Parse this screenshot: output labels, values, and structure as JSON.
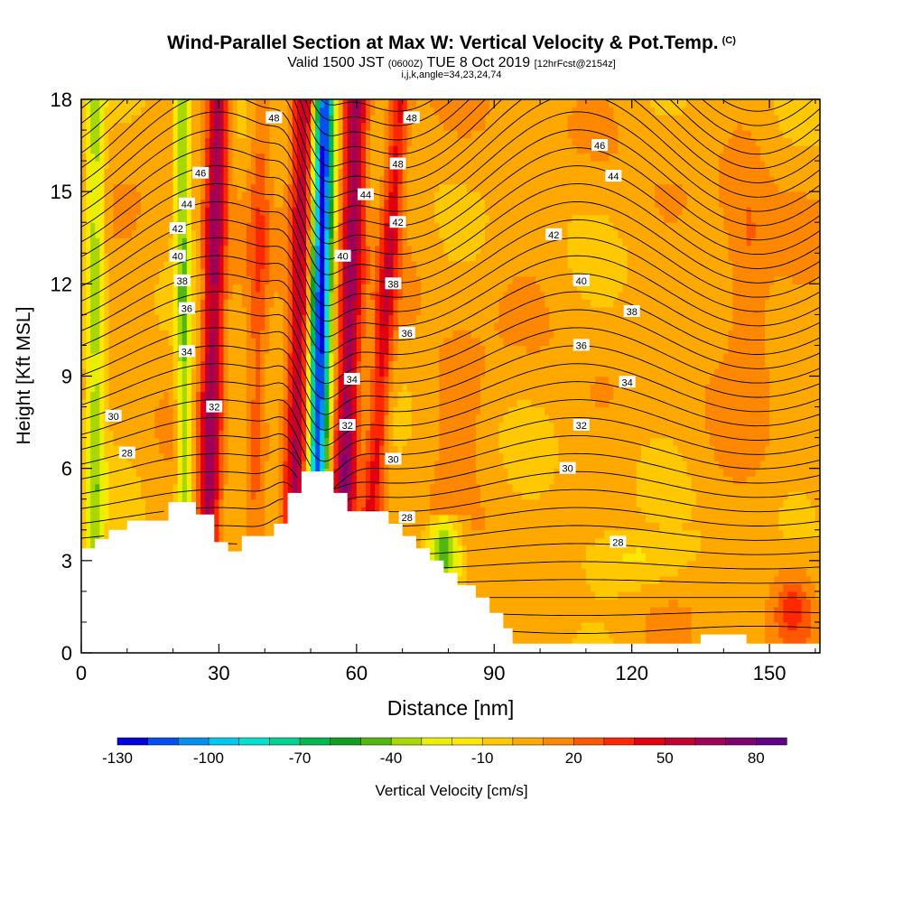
{
  "header": {
    "title": "Wind-Parallel Section at Max W: Vertical Velocity & Pot.Temp.",
    "title_mark": "(C)",
    "subtitle_main": "Valid 1500 JST",
    "subtitle_utc": "(0600Z)",
    "subtitle_date": "TUE 8 Oct 2019",
    "subtitle_fcst": "[12hrFcst@2154z]",
    "params": "i,j,k,angle=34,23,24,74"
  },
  "chart_data": {
    "type": "heatmap",
    "xlabel": "Distance [nm]",
    "ylabel": "Height [Kft MSL]",
    "xlim": [
      0,
      161
    ],
    "ylim": [
      0,
      18
    ],
    "x_ticks": [
      0,
      30,
      60,
      90,
      120,
      150
    ],
    "y_ticks": [
      0,
      3,
      6,
      9,
      12,
      15,
      18
    ],
    "colorbar": {
      "label": "Vertical Velocity [cm/s]",
      "tick_labels": [
        -130,
        -100,
        -70,
        -40,
        -10,
        20,
        50,
        80
      ],
      "min": -130,
      "max": 90,
      "colors": [
        "#0000e0",
        "#0050f0",
        "#0090f0",
        "#00c8f0",
        "#00e0d0",
        "#00d090",
        "#00b850",
        "#10a020",
        "#50b810",
        "#a8d800",
        "#e8f000",
        "#ffe800",
        "#ffc800",
        "#ffa800",
        "#ff8800",
        "#ff5800",
        "#ff2800",
        "#e00010",
        "#c00030",
        "#a00058",
        "#800070",
        "#600088"
      ]
    },
    "contour_field": "Potential temperature",
    "contour_labels": [
      {
        "value": 48,
        "x": 42,
        "y": 17.4
      },
      {
        "value": 48,
        "x": 72,
        "y": 17.4
      },
      {
        "value": 46,
        "x": 26,
        "y": 15.6
      },
      {
        "value": 48,
        "x": 69,
        "y": 15.9
      },
      {
        "value": 46,
        "x": 113,
        "y": 16.5
      },
      {
        "value": 44,
        "x": 23,
        "y": 14.6
      },
      {
        "value": 44,
        "x": 62,
        "y": 14.9
      },
      {
        "value": 44,
        "x": 116,
        "y": 15.5
      },
      {
        "value": 42,
        "x": 21,
        "y": 13.8
      },
      {
        "value": 42,
        "x": 69,
        "y": 14.0
      },
      {
        "value": 42,
        "x": 103,
        "y": 13.6
      },
      {
        "value": 40,
        "x": 21,
        "y": 12.9
      },
      {
        "value": 40,
        "x": 57,
        "y": 12.9
      },
      {
        "value": 40,
        "x": 109,
        "y": 12.1
      },
      {
        "value": 38,
        "x": 22,
        "y": 12.1
      },
      {
        "value": 38,
        "x": 68,
        "y": 12.0
      },
      {
        "value": 38,
        "x": 120,
        "y": 11.1
      },
      {
        "value": 36,
        "x": 23,
        "y": 11.2
      },
      {
        "value": 36,
        "x": 71,
        "y": 10.4
      },
      {
        "value": 36,
        "x": 109,
        "y": 10.0
      },
      {
        "value": 34,
        "x": 23,
        "y": 9.8
      },
      {
        "value": 34,
        "x": 59,
        "y": 8.9
      },
      {
        "value": 34,
        "x": 119,
        "y": 8.8
      },
      {
        "value": 32,
        "x": 29,
        "y": 8.0
      },
      {
        "value": 32,
        "x": 58,
        "y": 7.4
      },
      {
        "value": 32,
        "x": 109,
        "y": 7.4
      },
      {
        "value": 30,
        "x": 7,
        "y": 7.7
      },
      {
        "value": 30,
        "x": 68,
        "y": 6.3
      },
      {
        "value": 30,
        "x": 106,
        "y": 6.0
      },
      {
        "value": 28,
        "x": 10,
        "y": 6.5
      },
      {
        "value": 28,
        "x": 71,
        "y": 4.4
      },
      {
        "value": 28,
        "x": 117,
        "y": 3.6
      }
    ],
    "terrain": [
      [
        0,
        3.4
      ],
      [
        3,
        3.4
      ],
      [
        3,
        3.7
      ],
      [
        6,
        3.7
      ],
      [
        6,
        4.0
      ],
      [
        10,
        4.0
      ],
      [
        10,
        4.3
      ],
      [
        19,
        4.3
      ],
      [
        19,
        4.9
      ],
      [
        25,
        4.9
      ],
      [
        25,
        4.5
      ],
      [
        29,
        4.5
      ],
      [
        29,
        3.6
      ],
      [
        32,
        3.6
      ],
      [
        32,
        3.3
      ],
      [
        35,
        3.3
      ],
      [
        35,
        3.8
      ],
      [
        42,
        3.8
      ],
      [
        42,
        4.2
      ],
      [
        45,
        4.2
      ],
      [
        45,
        5.2
      ],
      [
        48,
        5.2
      ],
      [
        48,
        5.9
      ],
      [
        55,
        5.9
      ],
      [
        55,
        5.2
      ],
      [
        58,
        5.2
      ],
      [
        58,
        4.6
      ],
      [
        67,
        4.6
      ],
      [
        67,
        4.2
      ],
      [
        70,
        4.2
      ],
      [
        70,
        3.8
      ],
      [
        73,
        3.8
      ],
      [
        73,
        3.4
      ],
      [
        76,
        3.4
      ],
      [
        76,
        3.0
      ],
      [
        79,
        3.0
      ],
      [
        79,
        2.6
      ],
      [
        82,
        2.6
      ],
      [
        82,
        2.2
      ],
      [
        86,
        2.2
      ],
      [
        86,
        1.8
      ],
      [
        89,
        1.8
      ],
      [
        89,
        1.3
      ],
      [
        92,
        1.3
      ],
      [
        92,
        0.8
      ],
      [
        94,
        0.8
      ],
      [
        94,
        0.3
      ],
      [
        135,
        0.3
      ],
      [
        135,
        0.6
      ],
      [
        145,
        0.6
      ],
      [
        145,
        0.3
      ],
      [
        161,
        0.3
      ]
    ]
  }
}
